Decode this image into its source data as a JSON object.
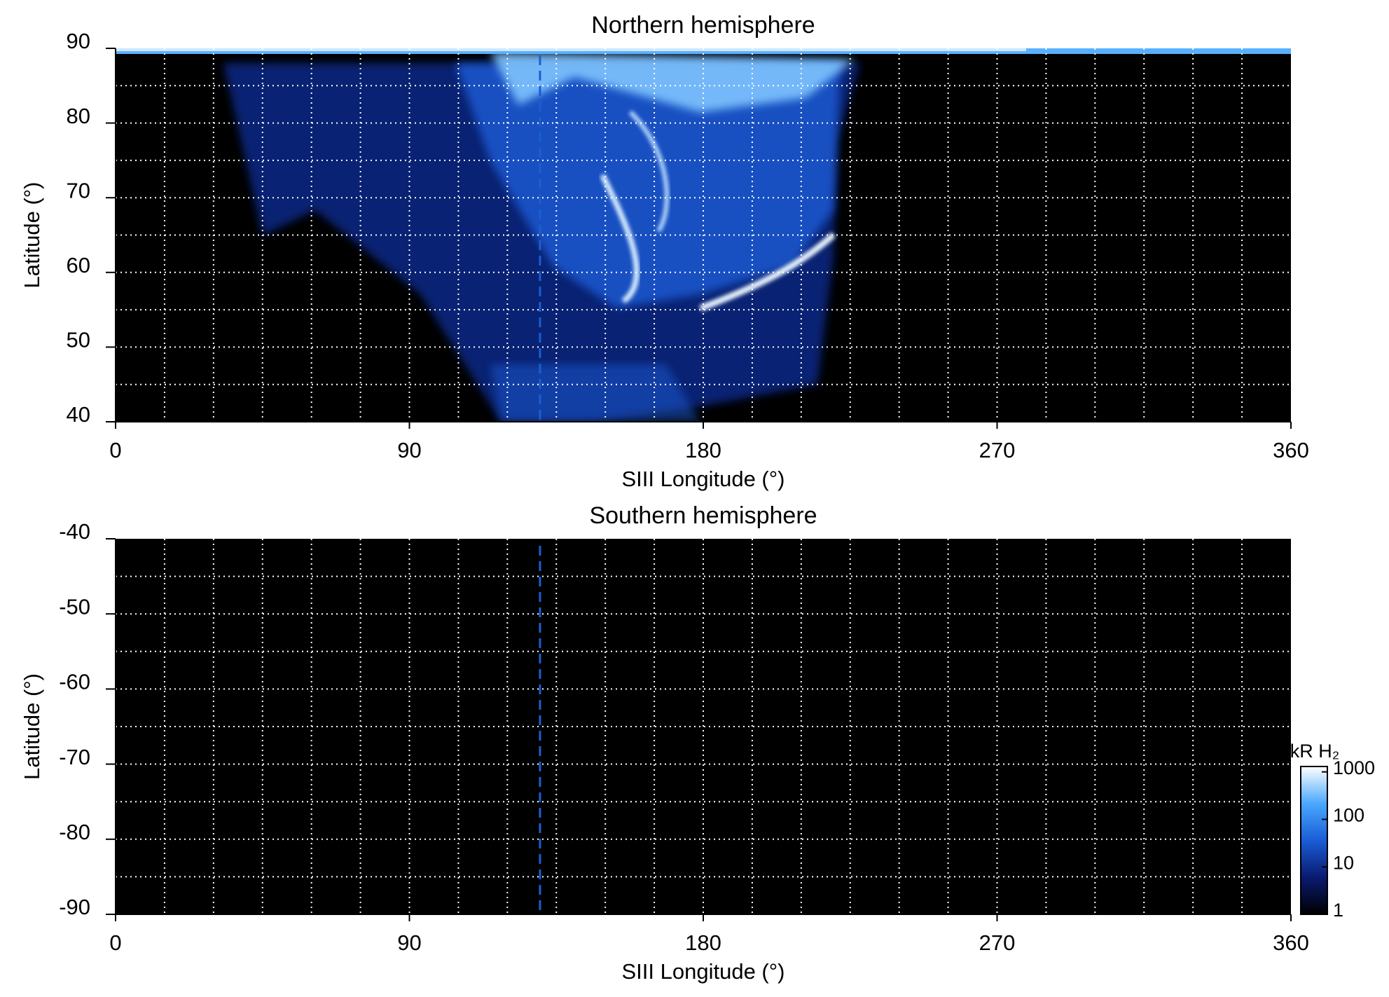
{
  "chart_data": [
    {
      "type": "heatmap",
      "title": "Northern hemisphere",
      "xlabel": "SIII Longitude (°)",
      "ylabel": "Latitude (°)",
      "xlim": [
        0,
        360
      ],
      "xticks": [
        0,
        90,
        180,
        270,
        360
      ],
      "ylim": [
        40,
        90
      ],
      "yticks": [
        40,
        50,
        60,
        70,
        80,
        90
      ],
      "grid": true,
      "grid_x_step": 15,
      "grid_y_step": 5,
      "vline": {
        "x": 130,
        "color": "#1a5fd0"
      }
    },
    {
      "type": "heatmap",
      "title": "Southern hemisphere",
      "xlabel": "SIII Longitude (°)",
      "ylabel": "Latitude (°)",
      "xlim": [
        0,
        360
      ],
      "xticks": [
        0,
        90,
        180,
        270,
        360
      ],
      "ylim": [
        -90,
        -40
      ],
      "yticks": [
        -90,
        -80,
        -70,
        -60,
        -50,
        -40
      ],
      "grid": true,
      "grid_x_step": 15,
      "grid_y_step": 5,
      "vline": {
        "x": 130,
        "color": "#1a5fd0"
      },
      "colorbar": {
        "label": "kR H₂",
        "scale": "log",
        "lim": [
          1,
          1300
        ],
        "ticks": [
          1,
          10,
          100,
          1000
        ],
        "colors": [
          "#000000",
          "#0a1a70",
          "#1a5cd6",
          "#4aa8ff",
          "#ffffff"
        ]
      }
    }
  ]
}
